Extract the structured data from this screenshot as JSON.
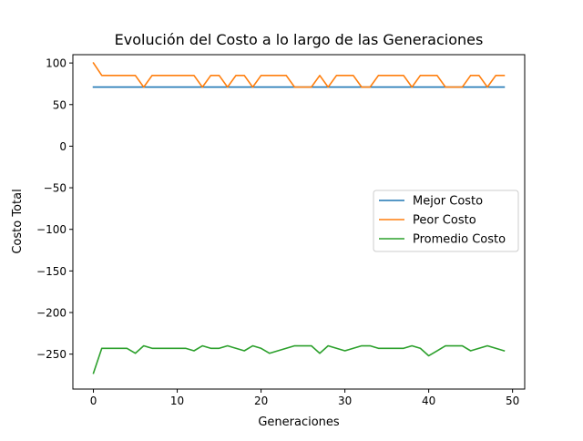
{
  "chart_data": {
    "type": "line",
    "title": "Evolución del Costo a lo largo de las Generaciones",
    "xlabel": "Generaciones",
    "ylabel": "Costo Total",
    "xlim": [
      -2.45,
      51.45
    ],
    "ylim": [
      -292,
      110
    ],
    "xticks": [
      0,
      10,
      20,
      30,
      40,
      50
    ],
    "yticks": [
      100,
      50,
      0,
      -50,
      -100,
      -150,
      -200,
      -250
    ],
    "ytick_labels": [
      "100",
      "50",
      "0",
      "−50",
      "−100",
      "−150",
      "−200",
      "−250"
    ],
    "grid": false,
    "legend_position": "center-right",
    "x": [
      0,
      1,
      2,
      3,
      4,
      5,
      6,
      7,
      8,
      9,
      10,
      11,
      12,
      13,
      14,
      15,
      16,
      17,
      18,
      19,
      20,
      21,
      22,
      23,
      24,
      25,
      26,
      27,
      28,
      29,
      30,
      31,
      32,
      33,
      34,
      35,
      36,
      37,
      38,
      39,
      40,
      41,
      42,
      43,
      44,
      45,
      46,
      47,
      48,
      49
    ],
    "series": [
      {
        "name": "Mejor Costo",
        "color": "#1f77b4",
        "values": [
          71,
          71,
          71,
          71,
          71,
          71,
          71,
          71,
          71,
          71,
          71,
          71,
          71,
          71,
          71,
          71,
          71,
          71,
          71,
          71,
          71,
          71,
          71,
          71,
          71,
          71,
          71,
          71,
          71,
          71,
          71,
          71,
          71,
          71,
          71,
          71,
          71,
          71,
          71,
          71,
          71,
          71,
          71,
          71,
          71,
          71,
          71,
          71,
          71,
          71
        ]
      },
      {
        "name": "Peor Costo",
        "color": "#ff7f0e",
        "values": [
          100,
          85,
          85,
          85,
          85,
          85,
          71,
          85,
          85,
          85,
          85,
          85,
          85,
          71,
          85,
          85,
          71,
          85,
          85,
          71,
          85,
          85,
          85,
          85,
          71,
          71,
          71,
          85,
          71,
          85,
          85,
          85,
          71,
          71,
          85,
          85,
          85,
          85,
          71,
          85,
          85,
          85,
          71,
          71,
          71,
          85,
          85,
          71,
          85,
          85
        ]
      },
      {
        "name": "Promedio Costo",
        "color": "#2ca02c",
        "values": [
          -273,
          -243,
          -243,
          -243,
          -243,
          -249,
          -240,
          -243,
          -243,
          -243,
          -243,
          -243,
          -246,
          -240,
          -243,
          -243,
          -240,
          -243,
          -246,
          -240,
          -243,
          -249,
          -246,
          -243,
          -240,
          -240,
          -240,
          -249,
          -240,
          -243,
          -246,
          -243,
          -240,
          -240,
          -243,
          -243,
          -243,
          -243,
          -240,
          -243,
          -252,
          -246,
          -240,
          -240,
          -240,
          -246,
          -243,
          -240,
          -243,
          -246
        ]
      }
    ]
  }
}
